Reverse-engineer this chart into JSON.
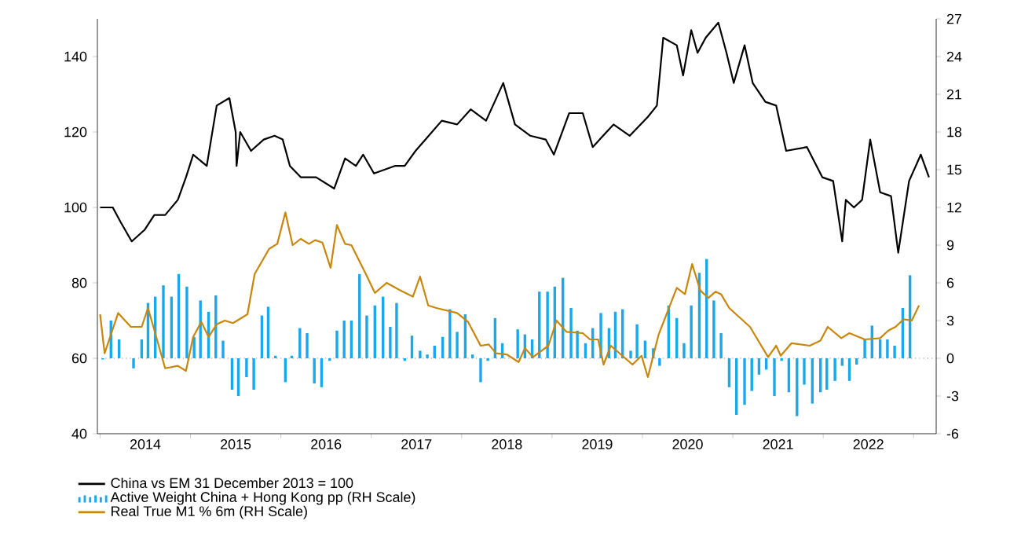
{
  "chart_data": {
    "type": "line",
    "xlim": [
      2013.97,
      2023.25
    ],
    "xticks": [
      {
        "value": 2014,
        "label": null
      },
      {
        "value": 2015,
        "label": null
      },
      {
        "value": 2016,
        "label": null
      },
      {
        "value": 2017,
        "label": null
      },
      {
        "value": 2018,
        "label": null
      },
      {
        "value": 2019,
        "label": null
      },
      {
        "value": 2020,
        "label": null
      },
      {
        "value": 2021,
        "label": null
      },
      {
        "value": 2022,
        "label": null
      },
      {
        "value": 2023,
        "label": null
      },
      {
        "value": 2014.5,
        "label": "2014"
      },
      {
        "value": 2015.5,
        "label": "2015"
      },
      {
        "value": 2016.5,
        "label": "2016"
      },
      {
        "value": 2017.5,
        "label": "2017"
      },
      {
        "value": 2018.5,
        "label": "2018"
      },
      {
        "value": 2019.5,
        "label": "2019"
      },
      {
        "value": 2020.5,
        "label": "2020"
      },
      {
        "value": 2021.5,
        "label": "2021"
      },
      {
        "value": 2022.5,
        "label": "2022"
      }
    ],
    "ylim": [
      40,
      150
    ],
    "yticks": [
      40,
      60,
      80,
      100,
      120,
      140
    ],
    "y2lim": [
      -6,
      27
    ],
    "y2ticks": [
      -6,
      -3,
      0,
      3,
      6,
      9,
      12,
      15,
      18,
      21,
      24,
      27
    ],
    "legend": "bottom",
    "ref_lines": [
      {
        "axis": "y2",
        "value": 0,
        "color": "#8c8c8c",
        "line_style": "dotted"
      }
    ],
    "series": [
      {
        "name": "China vs EM 31 December 2013 = 100",
        "color": "#000000",
        "x": [
          2014.0,
          2014.14,
          2014.23,
          2014.35,
          2014.49,
          2014.6,
          2014.72,
          2014.86,
          2014.95,
          2015.03,
          2015.18,
          2015.29,
          2015.43,
          2015.5,
          2015.51,
          2015.55,
          2015.67,
          2015.81,
          2015.93,
          2016.02,
          2016.1,
          2016.22,
          2016.39,
          2016.59,
          2016.71,
          2016.83,
          2016.91,
          2017.03,
          2017.26,
          2017.37,
          2017.49,
          2017.6,
          2017.78,
          2017.95,
          2018.1,
          2018.27,
          2018.46,
          2018.59,
          2018.76,
          2018.93,
          2019.02,
          2019.19,
          2019.34,
          2019.45,
          2019.68,
          2019.86,
          2020.06,
          2020.16,
          2020.23,
          2020.38,
          2020.45,
          2020.54,
          2020.61,
          2020.7,
          2020.84,
          2020.93,
          2021.01,
          2021.13,
          2021.22,
          2021.36,
          2021.48,
          2021.59,
          2021.82,
          2021.99,
          2022.11,
          2022.21,
          2022.25,
          2022.34,
          2022.43,
          2022.52,
          2022.63,
          2022.75,
          2022.83,
          2022.95,
          2023.08,
          2023.17
        ],
        "values": [
          100,
          100,
          96,
          91,
          94,
          98,
          98,
          102,
          108,
          114,
          111,
          127,
          129,
          120,
          111,
          120,
          115,
          118,
          119,
          118,
          111,
          108,
          108,
          105,
          113,
          111,
          114,
          109,
          111,
          111,
          115,
          118,
          123,
          122,
          126,
          123,
          133,
          122,
          119,
          118,
          114,
          125,
          125,
          116,
          122,
          119,
          124,
          127,
          145,
          143,
          135,
          147,
          141,
          145,
          149,
          141,
          133,
          143,
          133,
          128,
          127,
          115,
          116,
          108,
          107,
          91,
          102,
          100,
          102,
          118,
          104,
          103,
          88,
          107,
          114,
          108
        ]
      },
      {
        "name": "Active Weight China + Hong Kong pp (RH Scale)",
        "type": "bar",
        "axis": "y2",
        "color": "#1aa7ec",
        "x": [
          2014.03,
          2014.12,
          2014.21,
          2014.37,
          2014.46,
          2014.53,
          2014.61,
          2014.7,
          2014.79,
          2014.87,
          2014.96,
          2015.04,
          2015.11,
          2015.2,
          2015.28,
          2015.36,
          2015.46,
          2015.53,
          2015.62,
          2015.7,
          2015.79,
          2015.86,
          2015.94,
          2016.05,
          2016.12,
          2016.21,
          2016.29,
          2016.37,
          2016.45,
          2016.54,
          2016.62,
          2016.7,
          2016.78,
          2016.87,
          2016.95,
          2017.04,
          2017.13,
          2017.21,
          2017.28,
          2017.37,
          2017.45,
          2017.54,
          2017.62,
          2017.7,
          2017.79,
          2017.87,
          2017.95,
          2018.04,
          2018.12,
          2018.21,
          2018.29,
          2018.37,
          2018.45,
          2018.62,
          2018.7,
          2018.78,
          2018.86,
          2018.95,
          2019.03,
          2019.12,
          2019.21,
          2019.28,
          2019.37,
          2019.45,
          2019.54,
          2019.63,
          2019.7,
          2019.78,
          2019.87,
          2019.94,
          2020.03,
          2020.12,
          2020.19,
          2020.29,
          2020.38,
          2020.46,
          2020.54,
          2020.63,
          2020.71,
          2020.79,
          2020.87,
          2020.96,
          2021.04,
          2021.13,
          2021.21,
          2021.29,
          2021.37,
          2021.46,
          2021.54,
          2021.62,
          2021.71,
          2021.79,
          2021.88,
          2021.97,
          2022.04,
          2022.13,
          2022.21,
          2022.29,
          2022.37,
          2022.46,
          2022.54,
          2022.63,
          2022.71,
          2022.79,
          2022.88,
          2022.96
        ],
        "values": [
          -0.1,
          3.0,
          1.5,
          -0.8,
          1.5,
          4.4,
          4.9,
          5.8,
          4.9,
          6.7,
          5.7,
          1.7,
          4.6,
          3.7,
          5.0,
          1.4,
          -2.5,
          -3.0,
          -1.5,
          -2.5,
          3.4,
          4.1,
          0.2,
          -1.9,
          0.2,
          2.4,
          2.0,
          -2.0,
          -2.3,
          -0.2,
          2.2,
          3.0,
          3.0,
          6.7,
          3.4,
          4.2,
          4.9,
          2.5,
          4.4,
          -0.2,
          1.8,
          0.6,
          0.3,
          1.0,
          1.7,
          3.9,
          2.1,
          3.5,
          0.3,
          -1.9,
          -0.2,
          3.2,
          1.2,
          2.3,
          1.9,
          1.5,
          5.3,
          5.3,
          5.7,
          6.4,
          4.0,
          2.2,
          1.2,
          2.4,
          3.6,
          2.4,
          3.7,
          3.9,
          0.6,
          2.7,
          1.4,
          0.8,
          -0.6,
          4.2,
          3.2,
          1.2,
          4.2,
          6.8,
          7.9,
          4.6,
          2.0,
          -2.3,
          -4.5,
          -3.7,
          -2.6,
          -1.3,
          -0.9,
          -3.0,
          -0.2,
          -2.7,
          -4.6,
          -2.1,
          -3.6,
          -2.7,
          -2.5,
          -1.8,
          -0.6,
          -1.8,
          -0.5,
          1.5,
          2.6,
          1.5,
          1.5,
          1.0,
          4.0,
          6.6
        ]
      },
      {
        "name": "Real True M1 % 6m (RH Scale)",
        "axis": "y2",
        "color": "#c8860a",
        "x": [
          2014.0,
          2014.05,
          2014.2,
          2014.34,
          2014.46,
          2014.53,
          2014.72,
          2014.86,
          2014.95,
          2015.03,
          2015.12,
          2015.2,
          2015.29,
          2015.38,
          2015.47,
          2015.63,
          2015.71,
          2015.87,
          2015.96,
          2016.05,
          2016.13,
          2016.22,
          2016.31,
          2016.38,
          2016.46,
          2016.55,
          2016.62,
          2016.71,
          2016.78,
          2016.94,
          2017.04,
          2017.17,
          2017.32,
          2017.46,
          2017.54,
          2017.63,
          2017.72,
          2017.95,
          2018.07,
          2018.21,
          2018.3,
          2018.38,
          2018.5,
          2018.63,
          2018.7,
          2018.79,
          2018.96,
          2019.05,
          2019.16,
          2019.34,
          2019.42,
          2019.51,
          2019.57,
          2019.65,
          2019.89,
          2019.99,
          2020.06,
          2020.18,
          2020.38,
          2020.47,
          2020.55,
          2020.64,
          2020.73,
          2020.81,
          2020.87,
          2020.96,
          2021.19,
          2021.39,
          2021.48,
          2021.53,
          2021.65,
          2021.85,
          2021.97,
          2022.05,
          2022.2,
          2022.29,
          2022.46,
          2022.63,
          2022.72,
          2022.8,
          2022.89,
          2022.98,
          2023.06
        ],
        "values": [
          3.5,
          0.4,
          3.6,
          2.5,
          2.5,
          4.0,
          -0.8,
          -0.6,
          -1.0,
          1.7,
          2.9,
          1.7,
          2.7,
          3.0,
          2.8,
          3.5,
          6.7,
          8.7,
          9.1,
          11.6,
          9.0,
          9.5,
          9.1,
          9.4,
          9.2,
          7.2,
          10.6,
          9.1,
          9.0,
          6.7,
          5.2,
          6.0,
          5.4,
          4.9,
          6.5,
          4.2,
          4.0,
          3.6,
          2.9,
          1.0,
          1.1,
          0.4,
          0.3,
          -0.3,
          0.8,
          0.1,
          1.0,
          3.0,
          2.1,
          2.0,
          1.5,
          1.5,
          -0.5,
          1.0,
          -0.5,
          0.2,
          -1.5,
          1.9,
          5.6,
          5.1,
          7.5,
          5.4,
          4.8,
          5.3,
          5.1,
          4.0,
          2.5,
          0.1,
          1.0,
          0.2,
          1.2,
          1.0,
          1.4,
          2.5,
          1.6,
          2.0,
          1.5,
          1.6,
          2.2,
          2.5,
          3.1,
          3.0,
          4.2
        ]
      }
    ]
  }
}
